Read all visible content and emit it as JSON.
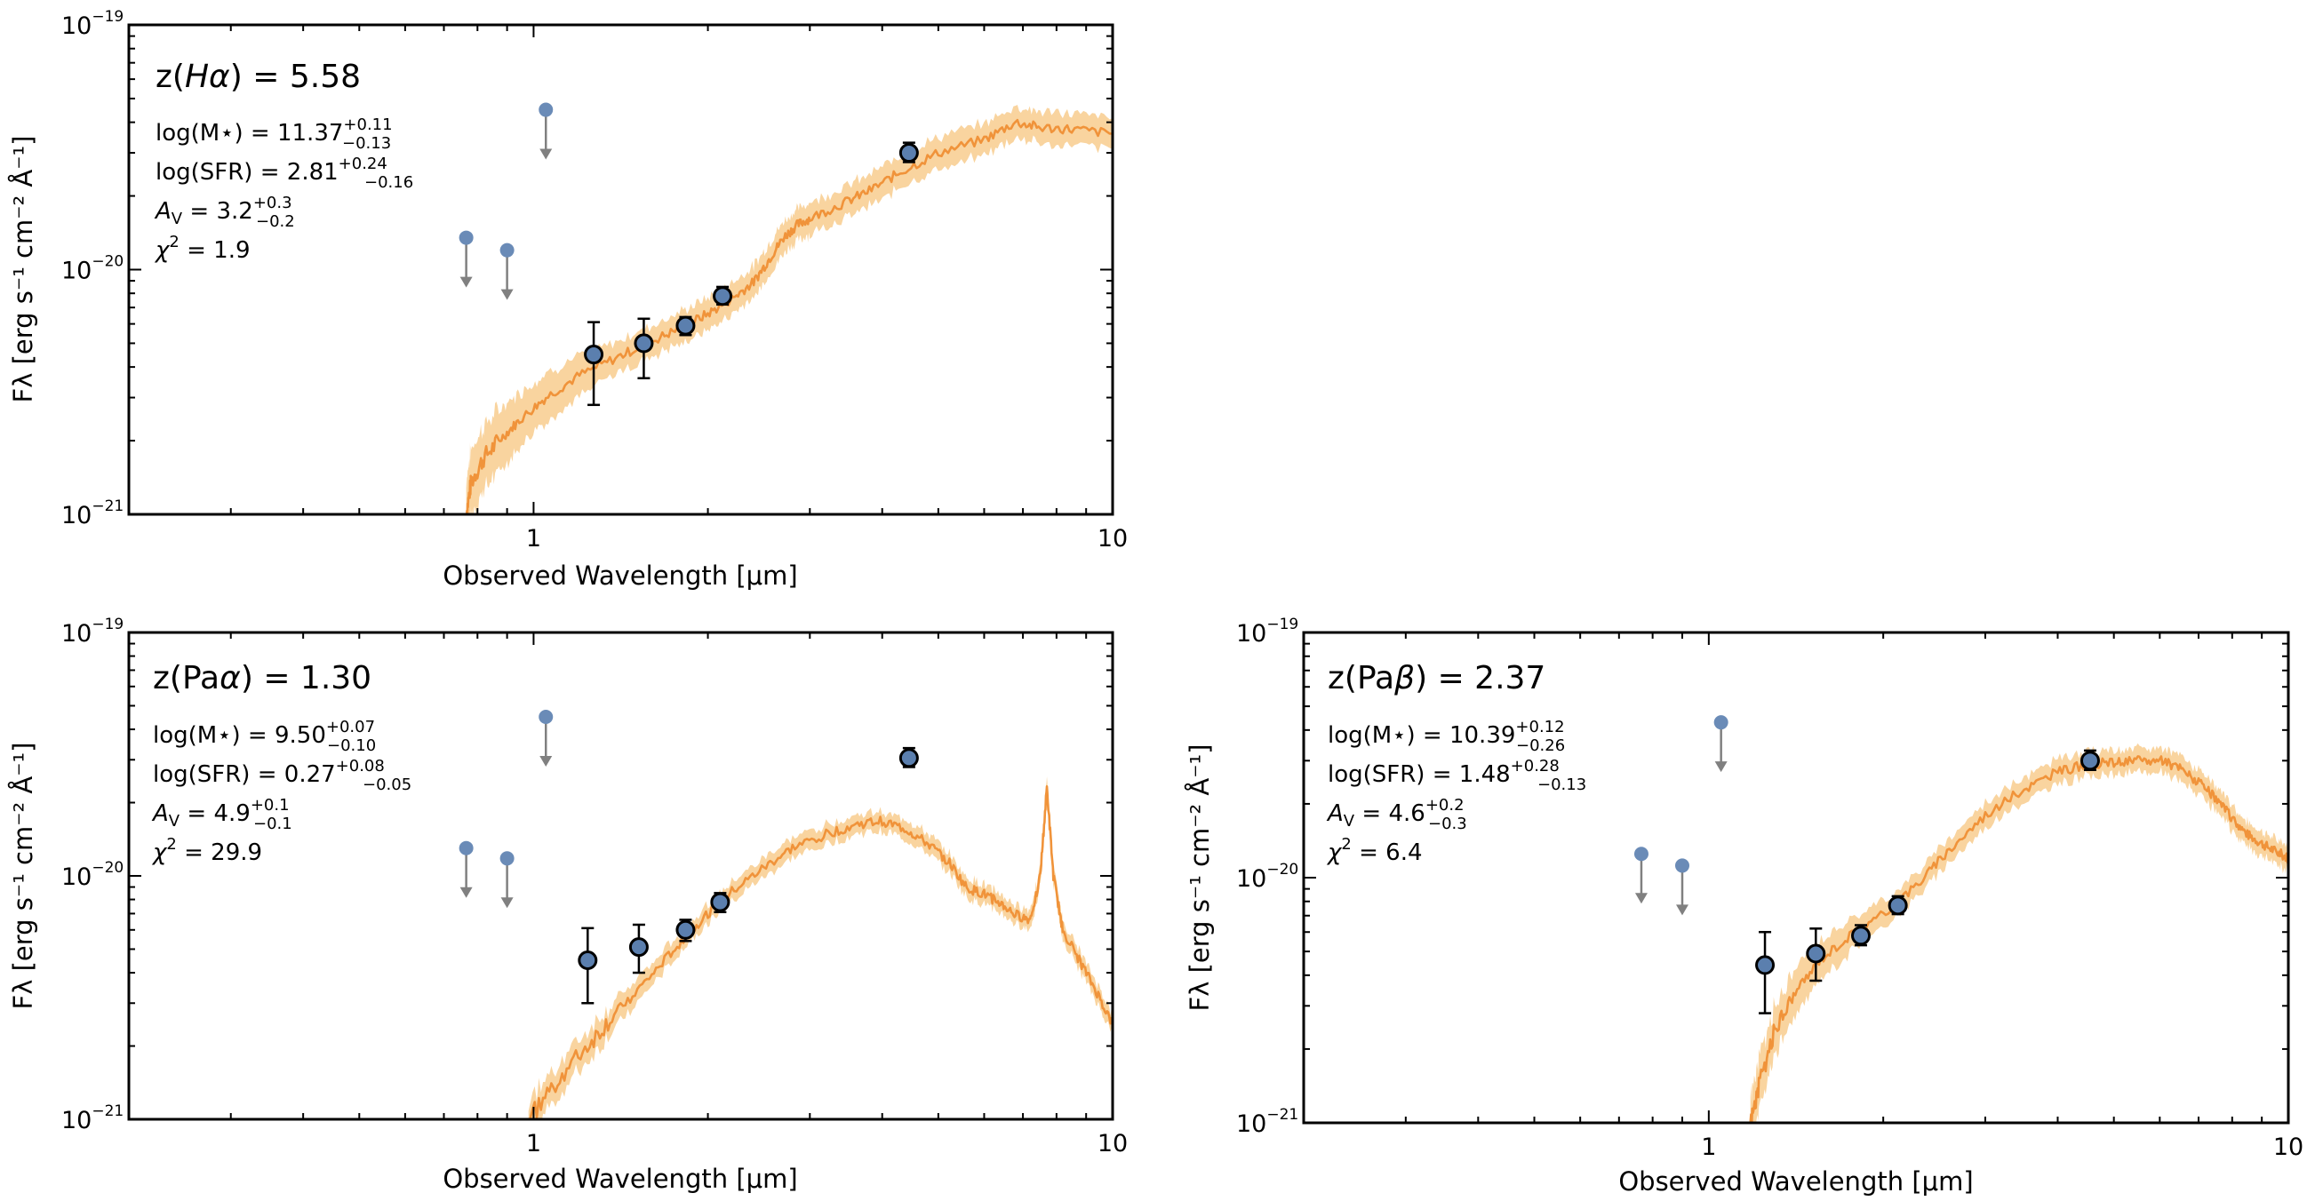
{
  "colors": {
    "model": "#f0933a",
    "band": "#f9d29a",
    "point_fill": "#5b7fae",
    "limit_fill": "#6a8bb7",
    "limit_arrow": "#808080"
  },
  "chart_data": [
    {
      "type": "scatter",
      "scale": "log-log",
      "title": "z(Hα) = 5.58",
      "title_parts": {
        "pre": "z(",
        "sym": "Hα",
        "post": ") = 5.58"
      },
      "xlabel": "Observed Wavelength [μm]",
      "ylabel": "Fλ [erg s⁻¹ cm⁻² Å⁻¹]",
      "xlim": [
        0.2,
        10
      ],
      "ylim": [
        1e-21,
        1e-19
      ],
      "xticks": [
        {
          "v": 1,
          "label": "1"
        },
        {
          "v": 10,
          "label": "10"
        }
      ],
      "yticks": [
        {
          "v": 1e-21,
          "base": "10",
          "exp": "−21"
        },
        {
          "v": 1e-20,
          "base": "10",
          "exp": "−20"
        },
        {
          "v": 1e-19,
          "base": "10",
          "exp": "−19"
        }
      ],
      "annotations": {
        "logM": {
          "label": "log(M⋆)",
          "value": "11.37",
          "up": "+0.11",
          "down": "−0.13"
        },
        "logSFR": {
          "label": "log(SFR)",
          "value": "2.81",
          "up": "+0.24",
          "down": "−0.16"
        },
        "Av": {
          "label": "A",
          "sub": "V",
          "value": "3.2",
          "up": "+0.3",
          "down": "−0.2"
        },
        "chi2": {
          "label": "χ",
          "sup": "2",
          "value": "1.9"
        }
      },
      "model": [
        [
          0.765,
          1e-21
        ],
        [
          0.78,
          1.35e-21
        ],
        [
          0.82,
          1.7e-21
        ],
        [
          0.88,
          2.05e-21
        ],
        [
          0.95,
          2.45e-21
        ],
        [
          1.05,
          3e-21
        ],
        [
          1.2,
          3.7e-21
        ],
        [
          1.4,
          4.4e-21
        ],
        [
          1.6,
          5.1e-21
        ],
        [
          1.8,
          5.8e-21
        ],
        [
          2.0,
          6.6e-21
        ],
        [
          2.2,
          7.6e-21
        ],
        [
          2.4,
          8.9e-21
        ],
        [
          2.55,
          1.1e-20
        ],
        [
          2.7,
          1.35e-20
        ],
        [
          2.85,
          1.52e-20
        ],
        [
          3.0,
          1.62e-20
        ],
        [
          3.4,
          1.85e-20
        ],
        [
          3.8,
          2.1e-20
        ],
        [
          4.3,
          2.5e-20
        ],
        [
          5.0,
          3e-20
        ],
        [
          6.0,
          3.4e-20
        ],
        [
          6.8,
          4e-20
        ],
        [
          7.5,
          3.8e-20
        ],
        [
          8.5,
          3.75e-20
        ],
        [
          10,
          3.6e-20
        ]
      ],
      "band_width": 0.13,
      "band_width_blue": 0.28,
      "points": [
        {
          "x": 1.27,
          "y": 4.5e-21,
          "ylo": 2.8e-21,
          "yhi": 6.1e-21
        },
        {
          "x": 1.55,
          "y": 5e-21,
          "ylo": 3.6e-21,
          "yhi": 6.3e-21
        },
        {
          "x": 1.83,
          "y": 5.9e-21,
          "ylo": 5.4e-21,
          "yhi": 6.4e-21
        },
        {
          "x": 2.12,
          "y": 7.8e-21,
          "ylo": 7.2e-21,
          "yhi": 8.5e-21
        },
        {
          "x": 4.45,
          "y": 3e-20,
          "ylo": 2.75e-20,
          "yhi": 3.3e-20
        }
      ],
      "limits": [
        {
          "x": 0.765,
          "y": 1.35e-20
        },
        {
          "x": 0.9,
          "y": 1.2e-20
        },
        {
          "x": 1.05,
          "y": 4.5e-20
        }
      ]
    },
    {
      "type": "scatter",
      "scale": "log-log",
      "title": "z(Paα) = 1.30",
      "title_parts": {
        "pre": "z(Pa",
        "sym": "α",
        "post": ") = 1.30"
      },
      "xlabel": "Observed Wavelength [μm]",
      "ylabel": "Fλ [erg s⁻¹ cm⁻² Å⁻¹]",
      "xlim": [
        0.2,
        10
      ],
      "ylim": [
        1e-21,
        1e-19
      ],
      "xticks": [
        {
          "v": 1,
          "label": "1"
        },
        {
          "v": 10,
          "label": "10"
        }
      ],
      "yticks": [
        {
          "v": 1e-21,
          "base": "10",
          "exp": "−21"
        },
        {
          "v": 1e-20,
          "base": "10",
          "exp": "−20"
        },
        {
          "v": 1e-19,
          "base": "10",
          "exp": "−19"
        }
      ],
      "annotations": {
        "logM": {
          "label": "log(M⋆)",
          "value": "9.50",
          "up": "+0.07",
          "down": "−0.10"
        },
        "logSFR": {
          "label": "log(SFR)",
          "value": "0.27",
          "up": "+0.08",
          "down": "−0.05"
        },
        "Av": {
          "label": "A",
          "sub": "V",
          "value": "4.9",
          "up": "+0.1",
          "down": "−0.1"
        },
        "chi2": {
          "label": "χ",
          "sup": "2",
          "value": "29.9"
        }
      },
      "model": [
        [
          0.98,
          1e-21
        ],
        [
          1.1,
          1.45e-21
        ],
        [
          1.25,
          2.05e-21
        ],
        [
          1.4,
          2.8e-21
        ],
        [
          1.6,
          3.9e-21
        ],
        [
          1.8,
          5.4e-21
        ],
        [
          2.0,
          7e-21
        ],
        [
          2.2,
          8.6e-21
        ],
        [
          2.5,
          1.08e-20
        ],
        [
          2.8,
          1.3e-20
        ],
        [
          3.2,
          1.48e-20
        ],
        [
          3.6,
          1.62e-20
        ],
        [
          4.0,
          1.68e-20
        ],
        [
          4.4,
          1.55e-20
        ],
        [
          4.8,
          1.35e-20
        ],
        [
          5.2,
          1.15e-20
        ],
        [
          5.6,
          8.9e-21
        ],
        [
          6.0,
          8.4e-21
        ],
        [
          6.4,
          7.7e-21
        ],
        [
          6.8,
          6.9e-21
        ],
        [
          7.2,
          6.6e-21
        ],
        [
          7.5,
          1e-20
        ],
        [
          7.7,
          2.3e-20
        ],
        [
          7.9,
          1e-20
        ],
        [
          8.2,
          6e-21
        ],
        [
          8.8,
          4.4e-21
        ],
        [
          9.4,
          3.3e-21
        ],
        [
          10,
          2.45e-21
        ]
      ],
      "band_width": 0.08,
      "band_width_blue": 0.15,
      "points": [
        {
          "x": 1.24,
          "y": 4.5e-21,
          "ylo": 3e-21,
          "yhi": 6.1e-21
        },
        {
          "x": 1.52,
          "y": 5.1e-21,
          "ylo": 4e-21,
          "yhi": 6.3e-21
        },
        {
          "x": 1.83,
          "y": 6e-21,
          "ylo": 5.4e-21,
          "yhi": 6.6e-21
        },
        {
          "x": 2.1,
          "y": 7.8e-21,
          "ylo": 7.1e-21,
          "yhi": 8.5e-21
        },
        {
          "x": 4.45,
          "y": 3.05e-20,
          "ylo": 2.8e-20,
          "yhi": 3.35e-20
        }
      ],
      "limits": [
        {
          "x": 0.765,
          "y": 1.3e-20
        },
        {
          "x": 0.9,
          "y": 1.18e-20
        },
        {
          "x": 1.05,
          "y": 4.5e-20
        }
      ]
    },
    {
      "type": "scatter",
      "scale": "log-log",
      "title": "z(Paβ) = 2.37",
      "title_parts": {
        "pre": "z(Pa",
        "sym": "β",
        "post": ") = 2.37"
      },
      "xlabel": "Observed Wavelength [μm]",
      "ylabel": "Fλ [erg s⁻¹ cm⁻² Å⁻¹]",
      "xlim": [
        0.2,
        10
      ],
      "ylim": [
        1e-21,
        1e-19
      ],
      "xticks": [
        {
          "v": 1,
          "label": "1"
        },
        {
          "v": 10,
          "label": "10"
        }
      ],
      "yticks": [
        {
          "v": 1e-21,
          "base": "10",
          "exp": "−21"
        },
        {
          "v": 1e-20,
          "base": "10",
          "exp": "−20"
        },
        {
          "v": 1e-19,
          "base": "10",
          "exp": "−19"
        }
      ],
      "annotations": {
        "logM": {
          "label": "log(M⋆)",
          "value": "10.39",
          "up": "+0.12",
          "down": "−0.26"
        },
        "logSFR": {
          "label": "log(SFR)",
          "value": "1.48",
          "up": "+0.28",
          "down": "−0.13"
        },
        "Av": {
          "label": "A",
          "sub": "V",
          "value": "4.6",
          "up": "+0.2",
          "down": "−0.3"
        },
        "chi2": {
          "label": "χ",
          "sup": "2",
          "value": "6.4"
        }
      },
      "model": [
        [
          1.18,
          1e-21
        ],
        [
          1.22,
          1.4e-21
        ],
        [
          1.3,
          2.4e-21
        ],
        [
          1.4,
          3.3e-21
        ],
        [
          1.55,
          4.6e-21
        ],
        [
          1.75,
          5.8e-21
        ],
        [
          2.0,
          7.1e-21
        ],
        [
          2.3,
          9.5e-21
        ],
        [
          2.6,
          1.3e-20
        ],
        [
          3.0,
          1.8e-20
        ],
        [
          3.5,
          2.3e-20
        ],
        [
          4.0,
          2.7e-20
        ],
        [
          4.5,
          2.9e-20
        ],
        [
          5.0,
          2.95e-20
        ],
        [
          5.5,
          3e-20
        ],
        [
          6.0,
          3e-20
        ],
        [
          6.5,
          2.8e-20
        ],
        [
          7.0,
          2.45e-20
        ],
        [
          7.5,
          2.1e-20
        ],
        [
          8.0,
          1.75e-20
        ],
        [
          8.5,
          1.5e-20
        ],
        [
          9.0,
          1.38e-20
        ],
        [
          9.5,
          1.28e-20
        ],
        [
          10,
          1.2e-20
        ]
      ],
      "band_width": 0.1,
      "band_width_blue": 0.22,
      "points": [
        {
          "x": 1.25,
          "y": 4.4e-21,
          "ylo": 2.8e-21,
          "yhi": 6e-21
        },
        {
          "x": 1.53,
          "y": 4.9e-21,
          "ylo": 3.8e-21,
          "yhi": 6.2e-21
        },
        {
          "x": 1.83,
          "y": 5.8e-21,
          "ylo": 5.3e-21,
          "yhi": 6.4e-21
        },
        {
          "x": 2.12,
          "y": 7.7e-21,
          "ylo": 7.1e-21,
          "yhi": 8.4e-21
        },
        {
          "x": 4.55,
          "y": 3e-20,
          "ylo": 2.75e-20,
          "yhi": 3.3e-20
        }
      ],
      "limits": [
        {
          "x": 0.765,
          "y": 1.25e-20
        },
        {
          "x": 0.9,
          "y": 1.12e-20
        },
        {
          "x": 1.05,
          "y": 4.3e-20
        }
      ]
    }
  ]
}
